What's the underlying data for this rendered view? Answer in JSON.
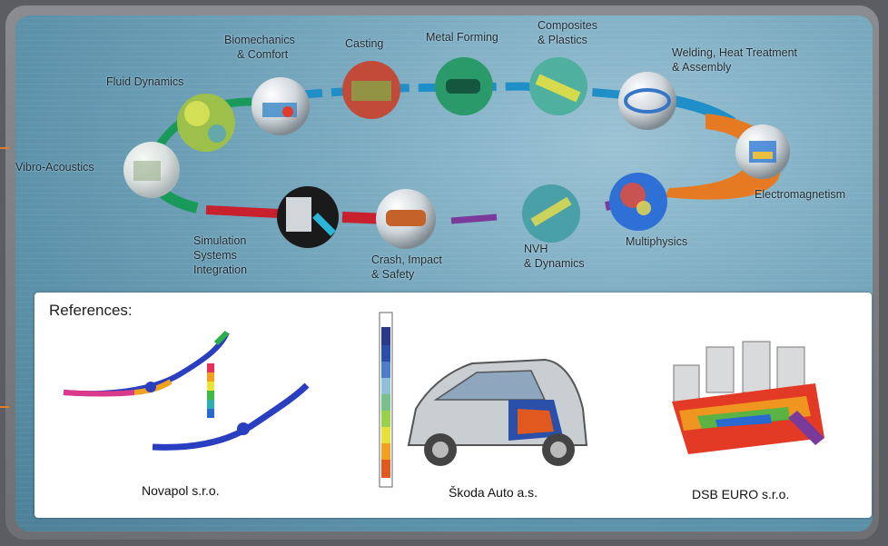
{
  "cycle": {
    "labels": {
      "vibro": "Vibro-Acoustics",
      "fluid": "Fluid Dynamics",
      "biomech_1": "Biomechanics",
      "biomech_2": "& Comfort",
      "casting": "Casting",
      "metal": "Metal Forming",
      "composites_1": "Composites",
      "composites_2": "& Plastics",
      "welding_1": "Welding, Heat Treatment",
      "welding_2": "& Assembly",
      "electro": "Electromagnetism",
      "multiphysics": "Multiphysics",
      "nvh_1": "NVH",
      "nvh_2": "& Dynamics",
      "crash_1": "Crash, Impact",
      "crash_2": "& Safety",
      "sim_1": "Simulation",
      "sim_2": "Systems",
      "sim_3": "Integration"
    }
  },
  "references": {
    "title": "References:",
    "items": [
      {
        "caption": "Novapol s.r.o."
      },
      {
        "caption": "Škoda Auto a.s."
      },
      {
        "caption": "DSB EURO s.r.o."
      }
    ]
  },
  "colors": {
    "accent": "#e67a22",
    "ring_blue": "#1e8fc8",
    "ring_red": "#c8202c",
    "ring_green": "#1a9a5a",
    "ring_purple": "#7a3a9a"
  }
}
